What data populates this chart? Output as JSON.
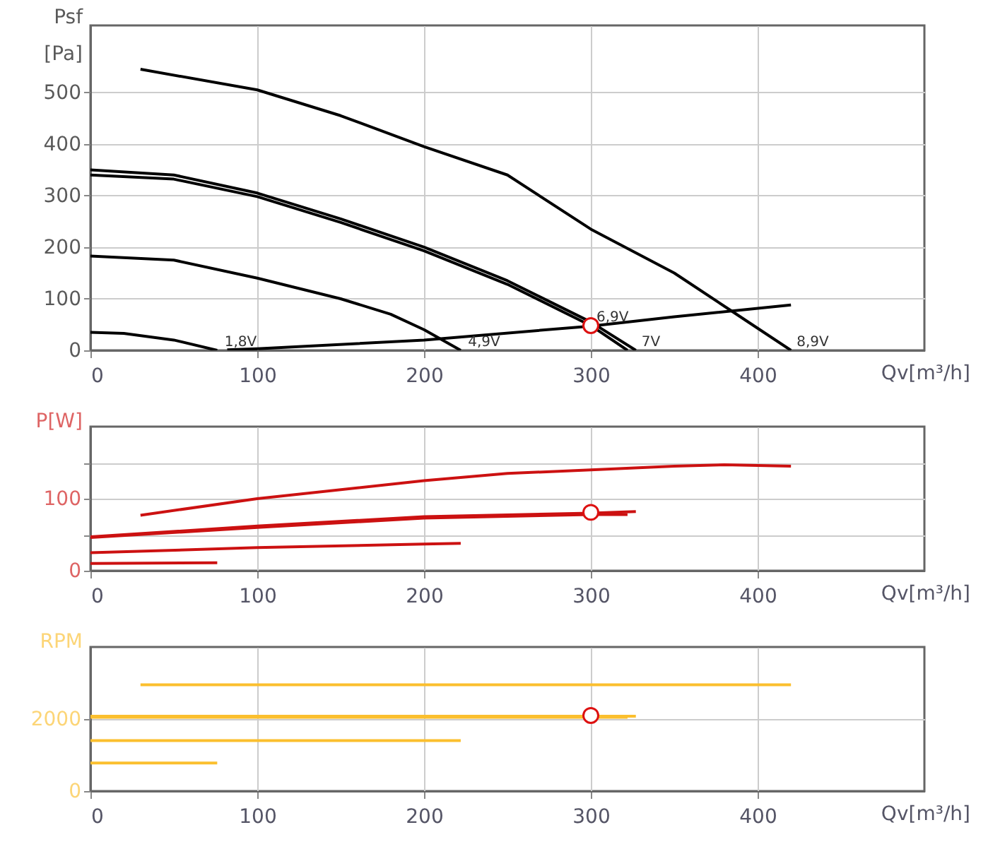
{
  "chart_data": [
    {
      "type": "line",
      "xlabel": "Qv[m³/h]",
      "ylabel": "Psf [Pa]",
      "xlim": [
        0,
        500
      ],
      "xticks": [
        0,
        100,
        200,
        300,
        400
      ],
      "ylim": [
        0,
        630
      ],
      "yticks": [
        0,
        100,
        200,
        300,
        400,
        500
      ],
      "grid": true,
      "series": [
        {
          "color": "#000000",
          "x": [
            30,
            100,
            150,
            200,
            250,
            300,
            350,
            385,
            420
          ],
          "values": [
            545,
            505,
            455,
            395,
            340,
            235,
            150,
            75,
            0
          ]
        },
        {
          "color": "#000000",
          "x": [
            0,
            50,
            100,
            150,
            200,
            250,
            300,
            327
          ],
          "values": [
            350,
            340,
            305,
            255,
            200,
            135,
            55,
            0
          ]
        },
        {
          "color": "#000000",
          "x": [
            0,
            50,
            100,
            150,
            200,
            250,
            300,
            322
          ],
          "values": [
            340,
            332,
            298,
            248,
            193,
            128,
            48,
            0
          ]
        },
        {
          "color": "#000000",
          "x": [
            0,
            50,
            100,
            150,
            180,
            200,
            222
          ],
          "values": [
            183,
            175,
            140,
            100,
            70,
            40,
            0
          ]
        },
        {
          "color": "#000000",
          "x": [
            0,
            20,
            50,
            76
          ],
          "values": [
            35,
            33,
            20,
            0
          ]
        },
        {
          "color": "#000000",
          "x": [
            82,
            100,
            200,
            300,
            350,
            420
          ],
          "values": [
            1,
            3,
            20,
            47,
            65,
            88
          ]
        },
        {
          "type": "scatter",
          "color": "#dd1111",
          "x": [
            300
          ],
          "values": [
            48
          ]
        }
      ],
      "annotations": [
        {
          "text": "1,8V",
          "x": 77,
          "y": 0
        },
        {
          "text": "4,9V",
          "x": 223,
          "y": 0
        },
        {
          "text": "6,9V",
          "x": 300,
          "y": 48
        },
        {
          "text": "7V",
          "x": 327,
          "y": 0
        },
        {
          "text": "8,9V",
          "x": 420,
          "y": 0
        }
      ]
    },
    {
      "type": "line",
      "xlabel": "Qv[m³/h]",
      "ylabel": "P[W]",
      "xlim": [
        0,
        500
      ],
      "xticks": [
        0,
        100,
        200,
        300,
        400
      ],
      "ylim": [
        0,
        200
      ],
      "yticks": [
        0,
        {
          "value": 50,
          "label": null
        },
        100,
        {
          "value": 150,
          "label": null
        }
      ],
      "grid": true,
      "series": [
        {
          "color": "#cc1111",
          "x": [
            30,
            100,
            200,
            250,
            300,
            350,
            380,
            420
          ],
          "values": [
            77,
            100,
            125,
            135,
            140,
            145,
            147,
            145
          ]
        },
        {
          "color": "#cc1111",
          "x": [
            0,
            100,
            200,
            300,
            327
          ],
          "values": [
            47,
            62,
            75,
            80,
            82
          ]
        },
        {
          "color": "#cc1111",
          "x": [
            0,
            100,
            200,
            300,
            322
          ],
          "values": [
            46,
            60,
            73,
            78,
            78
          ]
        },
        {
          "color": "#cc1111",
          "x": [
            0,
            100,
            200,
            222
          ],
          "values": [
            25,
            32,
            37,
            38
          ]
        },
        {
          "color": "#cc1111",
          "x": [
            0,
            76
          ],
          "values": [
            10,
            11
          ]
        },
        {
          "type": "scatter",
          "color": "#dd1111",
          "x": [
            300
          ],
          "values": [
            81
          ]
        }
      ]
    },
    {
      "type": "line",
      "xlabel": "Qv[m³/h]",
      "ylabel": "RPM",
      "xlim": [
        0,
        500
      ],
      "xticks": [
        0,
        100,
        200,
        300,
        400
      ],
      "ylim": [
        0,
        4000
      ],
      "yticks": [
        0,
        2000
      ],
      "grid": true,
      "series": [
        {
          "color": "#fbbf2e",
          "x": [
            30,
            420
          ],
          "values": [
            2950,
            2950
          ]
        },
        {
          "color": "#fbbf2e",
          "x": [
            0,
            327
          ],
          "values": [
            2080,
            2080
          ]
        },
        {
          "color": "#fbbf2e",
          "x": [
            0,
            322
          ],
          "values": [
            2050,
            2050
          ]
        },
        {
          "color": "#fbbf2e",
          "x": [
            0,
            222
          ],
          "values": [
            1400,
            1400
          ]
        },
        {
          "color": "#fbbf2e",
          "x": [
            0,
            76
          ],
          "values": [
            780,
            780
          ]
        },
        {
          "type": "scatter",
          "color": "#dd1111",
          "x": [
            300
          ],
          "values": [
            2100
          ]
        }
      ]
    }
  ]
}
